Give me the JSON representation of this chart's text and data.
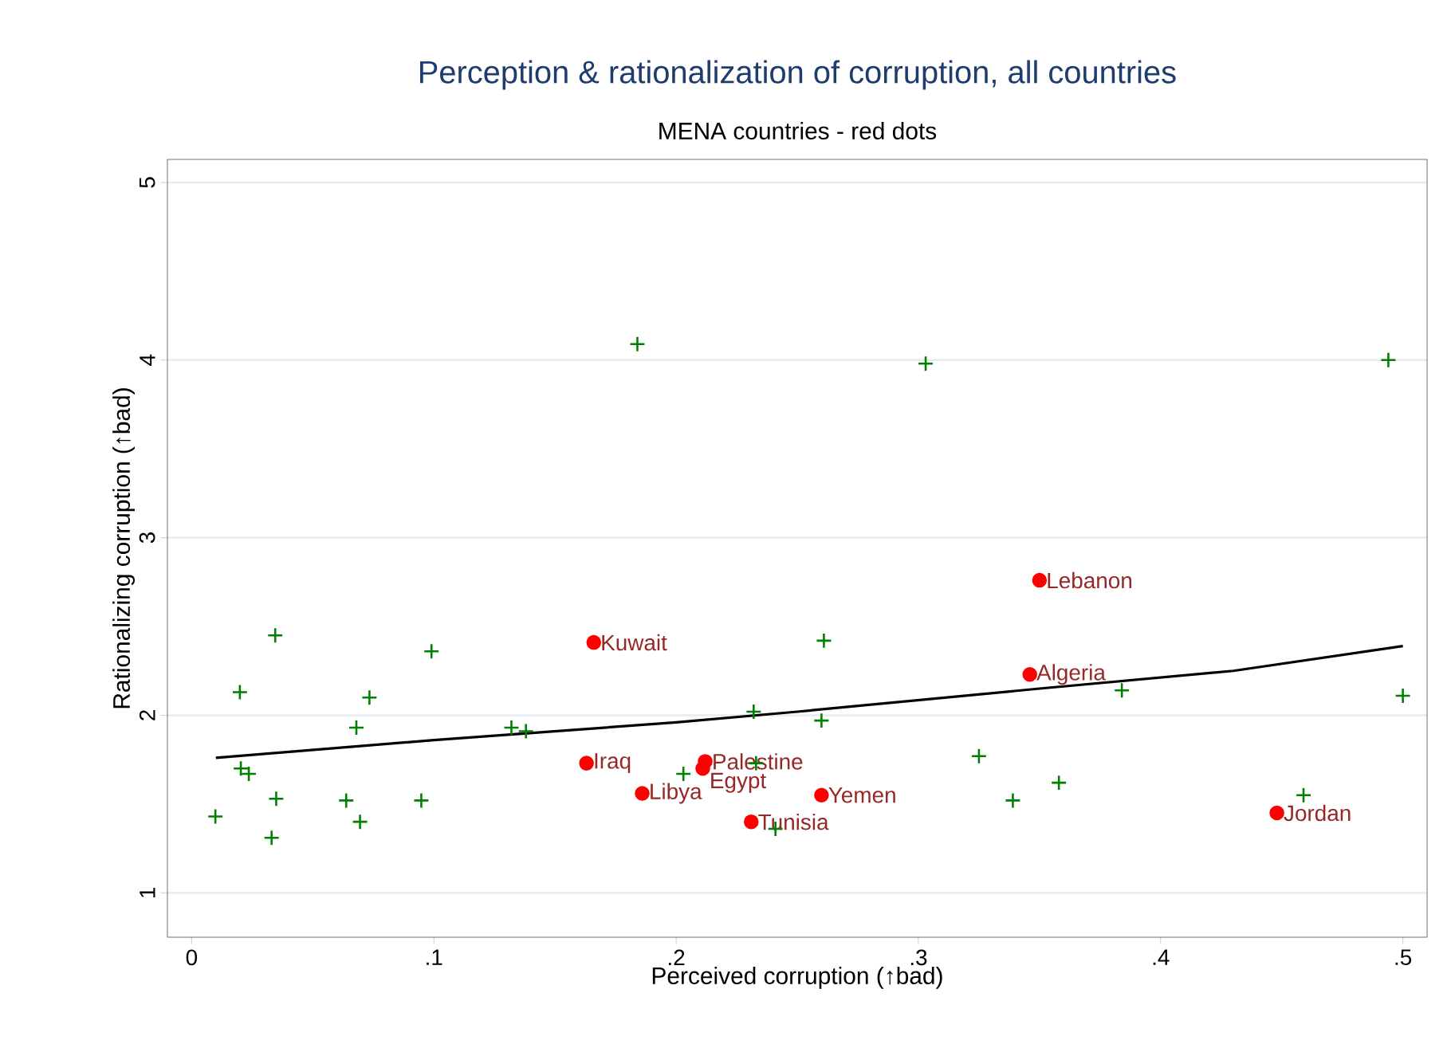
{
  "chart_data": {
    "type": "scatter",
    "title": "Perception & rationalization of corruption, all countries",
    "subtitle": "MENA countries - red dots",
    "xlabel": "Perceived corruption (↑bad)",
    "ylabel": "Rationalizing corruption (↑bad)",
    "xlim": [
      -0.01,
      0.51
    ],
    "ylim": [
      0.75,
      5.13
    ],
    "xticks": [
      0,
      {
        "value": 0.1,
        "label": ".1"
      },
      {
        "value": 0.2,
        "label": ".2"
      },
      {
        "value": 0.3,
        "label": ".3"
      },
      {
        "value": 0.4,
        "label": ".4"
      },
      {
        "value": 0.5,
        "label": ".5"
      }
    ],
    "yticks": [
      1,
      2,
      3,
      4,
      5
    ],
    "grid": "y",
    "series": [
      {
        "type": "scatter",
        "marker": "cross",
        "color": "#008000",
        "x": [
          0.0345,
          0.0199,
          0.099,
          0.0734,
          0.068,
          0.132,
          0.138,
          0.232,
          0.26,
          0.261,
          0.184,
          0.0203,
          0.0236,
          0.0349,
          0.0098,
          0.033,
          0.0638,
          0.0695,
          0.0948,
          0.203,
          0.233,
          0.241,
          0.303,
          0.494,
          0.384,
          0.5,
          0.325,
          0.358,
          0.339,
          0.459
        ],
        "values": [
          2.45,
          2.13,
          2.36,
          2.1,
          1.93,
          1.93,
          1.91,
          2.02,
          1.97,
          2.42,
          4.09,
          1.7,
          1.67,
          1.53,
          1.43,
          1.31,
          1.52,
          1.4,
          1.52,
          1.67,
          1.73,
          1.36,
          3.98,
          4.0,
          2.14,
          2.11,
          1.77,
          1.62,
          1.52,
          1.55
        ]
      },
      {
        "type": "scatter",
        "marker": "circle",
        "color": "#ff0000",
        "x": [
          0.166,
          0.163,
          0.212,
          0.211,
          0.186,
          0.231,
          0.26,
          0.35,
          0.346,
          0.448
        ],
        "values": [
          2.41,
          1.73,
          1.74,
          1.7,
          1.56,
          1.4,
          1.55,
          2.76,
          2.23,
          1.45
        ]
      },
      {
        "type": "line",
        "marker": "none",
        "line_style": "solid",
        "color": "#000000",
        "x": [
          0.01,
          0.1,
          0.2,
          0.25,
          0.35,
          0.43,
          0.5
        ],
        "values": [
          1.76,
          1.86,
          1.96,
          2.02,
          2.15,
          2.25,
          2.39
        ]
      }
    ],
    "annotations": [
      {
        "text": "Kuwait",
        "x": 0.166,
        "y": 2.41
      },
      {
        "text": "Iraq",
        "x": 0.163,
        "y": 1.73
      },
      {
        "text": "Palestine",
        "x": 0.212,
        "y": 1.74
      },
      {
        "text": "Egypt",
        "x": 0.211,
        "y": 1.7
      },
      {
        "text": "Libya",
        "x": 0.186,
        "y": 1.56
      },
      {
        "text": "Tunisia",
        "x": 0.231,
        "y": 1.4
      },
      {
        "text": "Yemen",
        "x": 0.26,
        "y": 1.55
      },
      {
        "text": "Lebanon",
        "x": 0.35,
        "y": 2.76
      },
      {
        "text": "Algeria",
        "x": 0.346,
        "y": 2.23
      },
      {
        "text": "Jordan",
        "x": 0.448,
        "y": 1.45
      }
    ]
  }
}
